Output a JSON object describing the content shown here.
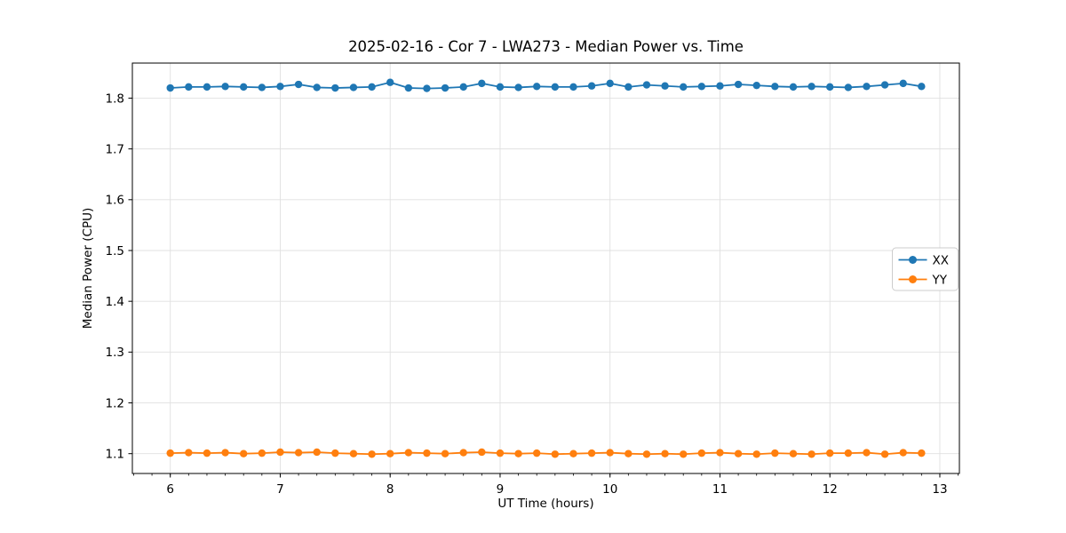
{
  "chart_data": {
    "type": "line",
    "title": "2025-02-16 - Cor 7 - LWA273 - Median Power vs. Time",
    "xlabel": "UT Time (hours)",
    "ylabel": "Median Power (CPU)",
    "xlim": [
      5.655,
      13.178
    ],
    "ylim": [
      1.061,
      1.869
    ],
    "xticks": [
      6,
      7,
      8,
      9,
      10,
      11,
      12,
      13
    ],
    "xtick_labels": [
      "6",
      "7",
      "8",
      "9",
      "10",
      "11",
      "12",
      "13"
    ],
    "yticks": [
      1.1,
      1.2,
      1.3,
      1.4,
      1.5,
      1.6,
      1.7,
      1.8
    ],
    "ytick_labels": [
      "1.1",
      "1.2",
      "1.3",
      "1.4",
      "1.5",
      "1.6",
      "1.7",
      "1.8"
    ],
    "minor_xtick_step": 0.166667,
    "grid": true,
    "grid_color": "#e0e0e0",
    "legend": {
      "position": "center-right",
      "entries": [
        "XX",
        "YY"
      ]
    },
    "x": [
      6.0,
      6.1667,
      6.3333,
      6.5,
      6.6667,
      6.8333,
      7.0,
      7.1667,
      7.3333,
      7.5,
      7.6667,
      7.8333,
      8.0,
      8.1667,
      8.3333,
      8.5,
      8.6667,
      8.8333,
      9.0,
      9.1667,
      9.3333,
      9.5,
      9.6667,
      9.8333,
      10.0,
      10.1667,
      10.3333,
      10.5,
      10.6667,
      10.8333,
      11.0,
      11.1667,
      11.3333,
      11.5,
      11.6667,
      11.8333,
      12.0,
      12.1667,
      12.3333,
      12.5,
      12.6667,
      12.8333
    ],
    "series": [
      {
        "name": "XX",
        "color": "#1f77b4",
        "values": [
          1.82,
          1.822,
          1.822,
          1.823,
          1.822,
          1.821,
          1.823,
          1.827,
          1.821,
          1.82,
          1.821,
          1.822,
          1.831,
          1.82,
          1.819,
          1.82,
          1.822,
          1.829,
          1.822,
          1.821,
          1.823,
          1.822,
          1.822,
          1.824,
          1.829,
          1.822,
          1.826,
          1.824,
          1.822,
          1.823,
          1.824,
          1.827,
          1.825,
          1.823,
          1.822,
          1.823,
          1.822,
          1.821,
          1.823,
          1.826,
          1.829,
          1.823
        ]
      },
      {
        "name": "YY",
        "color": "#ff7f0e",
        "values": [
          1.101,
          1.102,
          1.101,
          1.102,
          1.1,
          1.101,
          1.103,
          1.102,
          1.103,
          1.101,
          1.1,
          1.099,
          1.1,
          1.102,
          1.101,
          1.1,
          1.102,
          1.103,
          1.101,
          1.1,
          1.101,
          1.099,
          1.1,
          1.101,
          1.102,
          1.1,
          1.099,
          1.1,
          1.099,
          1.101,
          1.102,
          1.1,
          1.099,
          1.101,
          1.1,
          1.099,
          1.101,
          1.101,
          1.102,
          1.099,
          1.102,
          1.101
        ]
      }
    ]
  },
  "colors": {
    "background": "#ffffff",
    "spine": "#000000",
    "grid": "#e0e0e0",
    "legend_border": "#cccccc",
    "series_xx": "#1f77b4",
    "series_yy": "#ff7f0e"
  }
}
